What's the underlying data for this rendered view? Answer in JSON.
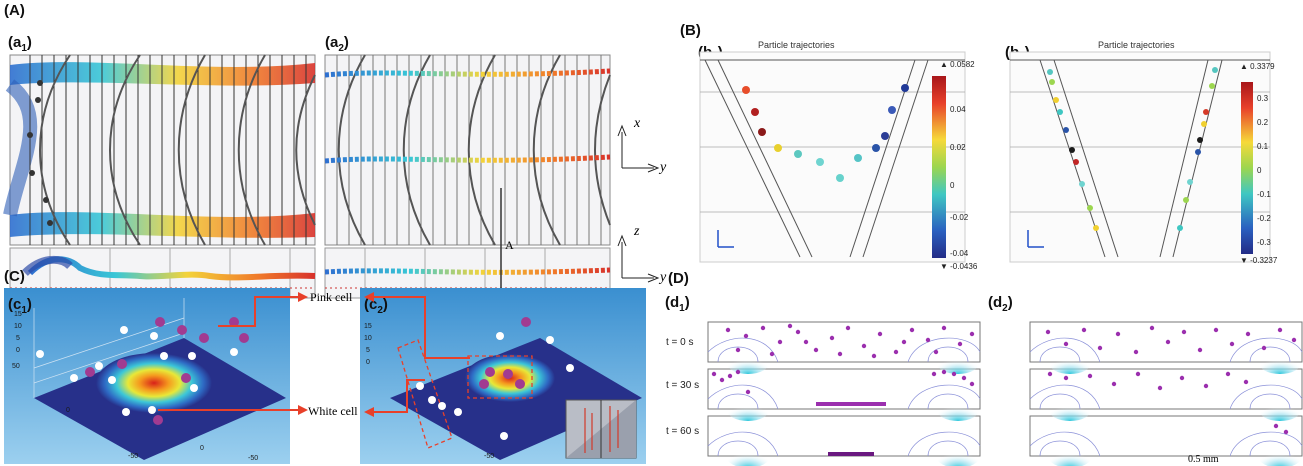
{
  "panels": {
    "A": {
      "letter": "(A)",
      "a1": {
        "letter": "(a",
        "sub": "1",
        "close": ")"
      },
      "a2": {
        "letter": "(a",
        "sub": "2",
        "close": ")"
      },
      "axes_top": {
        "x": "x",
        "y": "y"
      },
      "axes_bottom": {
        "z": "z",
        "y": "y"
      },
      "section_label": "A"
    },
    "B": {
      "letter": "(B)",
      "b1": {
        "letter": "(b",
        "sub": "1",
        "close": ")",
        "title": "Particle trajectories",
        "cb_max": "▲ 0.0582",
        "cb_min": "▼ -0.0436",
        "cb_ticks": [
          "0.04",
          "0.02",
          "0",
          "-0.02",
          "-0.04"
        ]
      },
      "b2": {
        "letter": "(b",
        "sub": "2",
        "close": ")",
        "title": "Particle trajectories",
        "cb_max": "▲ 0.3379",
        "cb_min": "▼ -0.3237",
        "cb_ticks": [
          "0.3",
          "0.2",
          "0.1",
          "0",
          "-0.1",
          "-0.2",
          "-0.3"
        ]
      }
    },
    "C": {
      "letter": "(C)",
      "c1": {
        "letter": "(c",
        "sub": "1",
        "close": ")"
      },
      "c2": {
        "letter": "(c",
        "sub": "2",
        "close": ")"
      },
      "pink_label": "Pink cell",
      "white_label": "White cell",
      "z_ticks": [
        "15",
        "10",
        "5",
        "0",
        "50"
      ],
      "axis_ticks": [
        "0",
        "-50",
        "50",
        "-50"
      ]
    },
    "D": {
      "letter": "(D)",
      "d1": {
        "letter": "(d",
        "sub": "1",
        "close": ")"
      },
      "d2": {
        "letter": "(d",
        "sub": "2",
        "close": ")"
      },
      "times": [
        "t = 0 s",
        "t = 30 s",
        "t = 60 s"
      ],
      "scale_bar": "0.5 mm"
    }
  },
  "colors": {
    "particle_purple": "#9b2fae",
    "arrow_red": "#e8402a",
    "plate_navy": "#27308a",
    "bg_blue": "#4a9fd8"
  }
}
